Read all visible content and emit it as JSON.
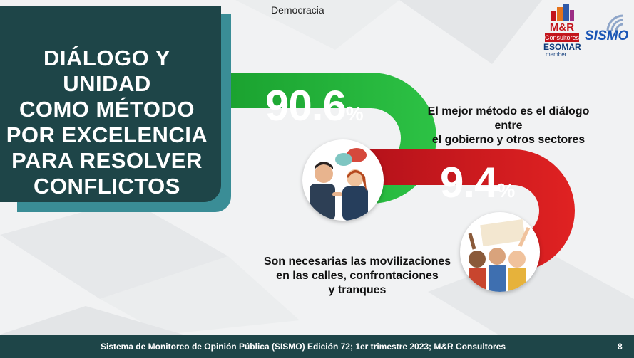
{
  "header": {
    "section_label": "Democracia",
    "logos": {
      "mr_brand": "M&R",
      "mr_sub": "Consultores",
      "esomar": "ESOMAR",
      "esomar_member": "member",
      "sismo": "SISMO"
    }
  },
  "title_panel": {
    "lines": [
      "DIÁLOGO Y UNIDAD",
      "COMO MÉTODO",
      "POR EXCELENCIA",
      "PARA RESOLVER",
      "CONFLICTOS"
    ]
  },
  "chart_data": {
    "type": "bar",
    "categories": [
      "El mejor método es el diálogo entre el gobierno y otros sectores",
      "Son necesarias las movilizaciones en las calles, confrontaciones y tranques"
    ],
    "values": [
      90.6,
      9.4
    ],
    "unit": "%",
    "value_labels": [
      "90.6",
      "9.4"
    ],
    "series_colors": [
      "#1fb53a",
      "#d41b1b"
    ],
    "captions": {
      "first_lines": [
        "El mejor método es el diálogo entre",
        "el gobierno y otros sectores"
      ],
      "second_lines": [
        "Son necesarias las movilizaciones",
        "en las calles, confrontaciones",
        "y tranques"
      ]
    }
  },
  "icons": {
    "dialog": "people-talking-icon",
    "protest": "protest-crowd-icon"
  },
  "footer": {
    "text": "Sistema de Monitoreo de Opinión Pública (SISMO) Edición 72; 1er trimestre 2023; M&R Consultores",
    "page_number": "8"
  }
}
